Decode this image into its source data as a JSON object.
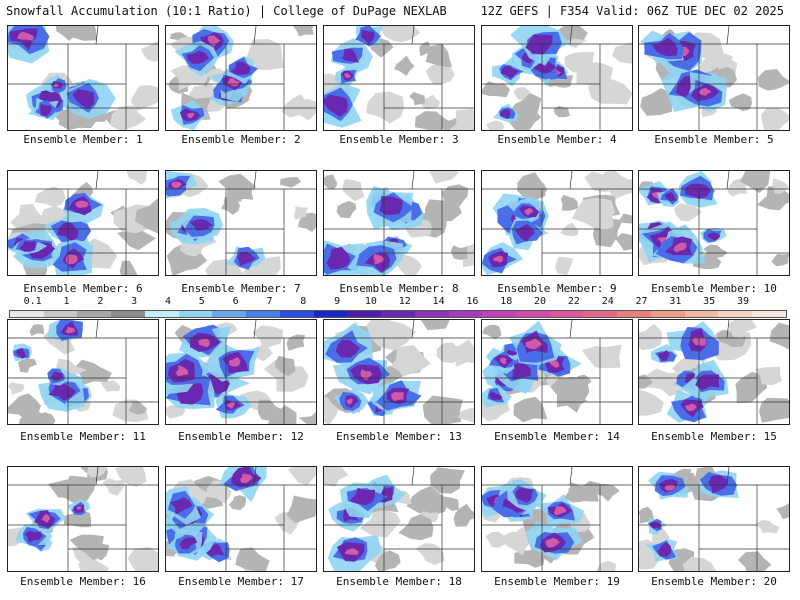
{
  "header": {
    "left": "Snowfall Accumulation (10:1 Ratio) | College of DuPage NEXLAB",
    "right": "12Z GEFS | F354 Valid: 06Z TUE DEC 02 2025"
  },
  "members": [
    "Ensemble Member: 1",
    "Ensemble Member: 2",
    "Ensemble Member: 3",
    "Ensemble Member: 4",
    "Ensemble Member: 5",
    "Ensemble Member: 6",
    "Ensemble Member: 7",
    "Ensemble Member: 8",
    "Ensemble Member: 9",
    "Ensemble Member: 10",
    "Ensemble Member: 11",
    "Ensemble Member: 12",
    "Ensemble Member: 13",
    "Ensemble Member: 14",
    "Ensemble Member: 15",
    "Ensemble Member: 16",
    "Ensemble Member: 17",
    "Ensemble Member: 18",
    "Ensemble Member: 19",
    "Ensemble Member: 20"
  ],
  "colorbar": {
    "ticks": [
      "0.1",
      "1",
      "2",
      "3",
      "4",
      "5",
      "6",
      "7",
      "8",
      "9",
      "10",
      "12",
      "14",
      "16",
      "18",
      "20",
      "22",
      "24",
      "27",
      "31",
      "35",
      "39"
    ],
    "colors": [
      "#e8e8e8",
      "#c8c8c8",
      "#a8a8a8",
      "#8c8c8c",
      "#bff0f5",
      "#8fd4f2",
      "#6aa8ee",
      "#4a7fe8",
      "#2a4ee6",
      "#1a26c8",
      "#4a1ea8",
      "#6a28b0",
      "#8a34b8",
      "#a43cbc",
      "#c044b8",
      "#d04ca8",
      "#dc5898",
      "#e46888",
      "#e8807c",
      "#ec9c8c",
      "#f0b8a8",
      "#f4d4c4",
      "#f8e8de"
    ]
  },
  "icon_names": [
    "panel-map"
  ]
}
